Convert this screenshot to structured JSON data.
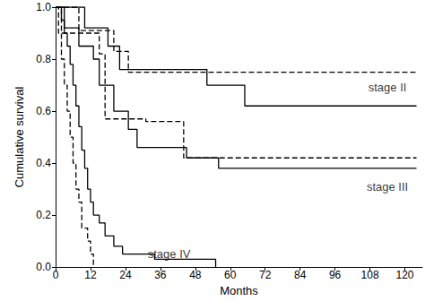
{
  "chart_data": {
    "type": "line",
    "x_label": "Months",
    "y_label": "Cumulative survival",
    "xlim": [
      0,
      126
    ],
    "xticks": [
      0,
      12,
      24,
      36,
      48,
      60,
      72,
      84,
      96,
      108,
      120
    ],
    "ylim": [
      0,
      1
    ],
    "yticks": [
      {
        "value": 0,
        "label": "0.0"
      },
      0.2,
      0.4,
      0.6,
      0.8,
      {
        "value": 1,
        "label": "1.0"
      }
    ],
    "grid": false,
    "series": [
      {
        "color": "#000000",
        "line_style": "solid",
        "x": [
          0,
          10,
          18,
          22,
          52,
          65,
          124
        ],
        "values": [
          1.0,
          0.92,
          0.85,
          0.76,
          0.7,
          0.62,
          0.62
        ]
      },
      {
        "color": "#000000",
        "line_style": "dashed",
        "x": [
          0,
          8,
          20,
          25,
          124
        ],
        "values": [
          1.0,
          0.91,
          0.83,
          0.75,
          0.75
        ]
      },
      {
        "color": "#000000",
        "line_style": "solid",
        "x": [
          0,
          3,
          8,
          13,
          15,
          20,
          25,
          28,
          45,
          56,
          124
        ],
        "values": [
          1.0,
          0.92,
          0.85,
          0.8,
          0.7,
          0.6,
          0.53,
          0.46,
          0.42,
          0.38,
          0.38
        ]
      },
      {
        "color": "#000000",
        "line_style": "dashed",
        "x": [
          0,
          2,
          15,
          17,
          31,
          44,
          124
        ],
        "values": [
          1.0,
          0.9,
          0.82,
          0.57,
          0.56,
          0.42,
          0.42
        ]
      },
      {
        "color": "#000000",
        "line_style": "solid",
        "x": [
          0,
          2,
          3,
          4,
          5,
          6,
          7,
          8,
          9,
          10,
          11,
          12,
          13,
          15,
          17,
          20,
          23,
          34,
          55
        ],
        "values": [
          1.0,
          0.95,
          0.9,
          0.85,
          0.78,
          0.7,
          0.62,
          0.54,
          0.45,
          0.38,
          0.3,
          0.25,
          0.2,
          0.17,
          0.12,
          0.08,
          0.05,
          0.03,
          0.0
        ]
      },
      {
        "color": "#000000",
        "line_style": "dashed",
        "x": [
          0,
          1,
          2,
          3,
          4,
          5,
          6,
          7,
          8,
          9,
          11,
          12,
          13
        ],
        "values": [
          1.0,
          0.9,
          0.8,
          0.7,
          0.6,
          0.5,
          0.4,
          0.3,
          0.25,
          0.15,
          0.1,
          0.05,
          0.0
        ]
      }
    ],
    "annotations": [
      {
        "text": "stage II",
        "x": 114,
        "y": 0.69
      },
      {
        "text": "stage III",
        "x": 114,
        "y": 0.31
      },
      {
        "text": "stage IV",
        "x": 39,
        "y": 0.05
      }
    ]
  }
}
